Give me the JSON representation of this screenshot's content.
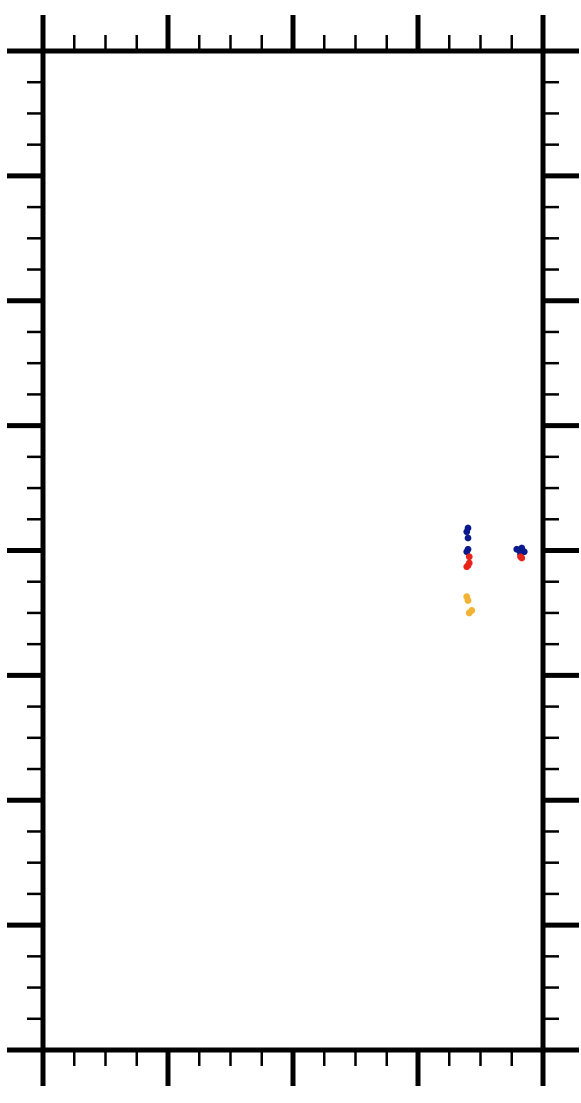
{
  "chart_data": {
    "type": "scatter",
    "title": "",
    "xlabel": "",
    "ylabel": "",
    "xlim": [
      0,
      4
    ],
    "ylim": [
      0,
      8
    ],
    "major_ticks_x": [
      0,
      1,
      2,
      3,
      4
    ],
    "major_ticks_y": [
      0,
      1,
      2,
      3,
      4,
      5,
      6,
      7,
      8
    ],
    "minor_per_major": 4,
    "tick_labels_shown": false,
    "grid": false,
    "legend": "none",
    "series": [
      {
        "color": "#0a1a8c",
        "points": [
          [
            3.4,
            4.18
          ],
          [
            3.39,
            4.15
          ],
          [
            3.4,
            4.1
          ],
          [
            3.4,
            4.01
          ],
          [
            3.39,
            3.99
          ],
          [
            3.81,
            4.0
          ],
          [
            3.83,
            4.02
          ],
          [
            3.85,
            3.99
          ],
          [
            3.79,
            4.01
          ],
          [
            3.82,
            3.97
          ]
        ]
      },
      {
        "color": "#e8231a",
        "points": [
          [
            3.41,
            3.95
          ],
          [
            3.4,
            3.88
          ],
          [
            3.39,
            3.87
          ],
          [
            3.41,
            3.9
          ],
          [
            3.82,
            3.95
          ],
          [
            3.83,
            3.94
          ]
        ]
      },
      {
        "color": "#f2b233",
        "points": [
          [
            3.39,
            3.63
          ],
          [
            3.4,
            3.6
          ],
          [
            3.41,
            3.5
          ],
          [
            3.43,
            3.52
          ]
        ]
      }
    ]
  }
}
